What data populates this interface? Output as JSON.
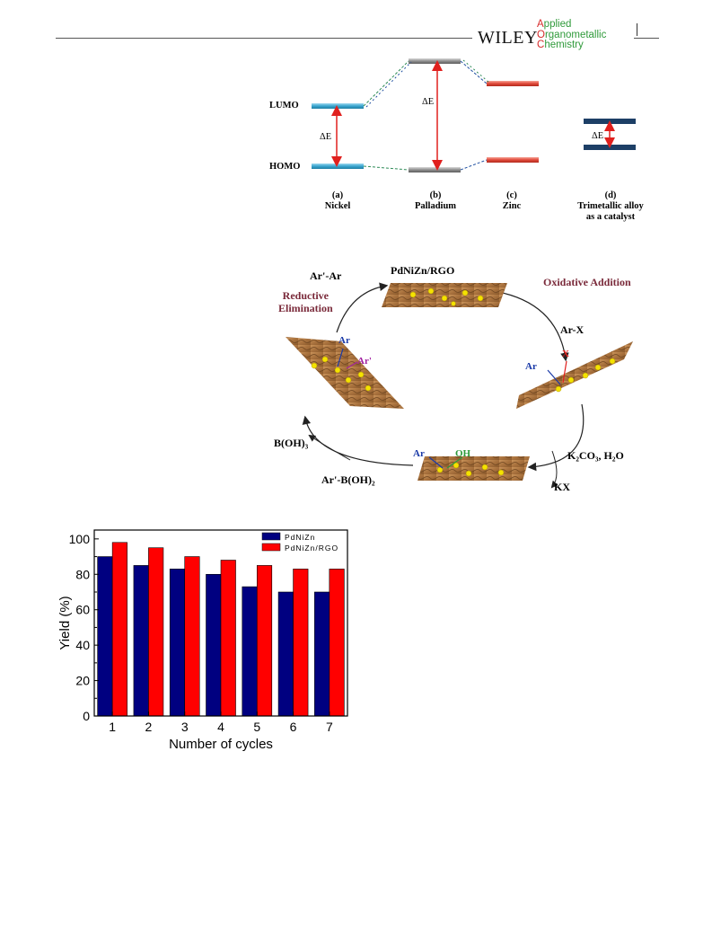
{
  "header": {
    "publisher": "WILEY",
    "journal_line1_cap": "A",
    "journal_line1_rest": "pplied",
    "journal_line2_cap": "O",
    "journal_line2_rest": "rganometallic",
    "journal_line3_cap": "C",
    "journal_line3_rest": "hemistry"
  },
  "energy_diagram": {
    "lumo_label": "LUMO",
    "homo_label": "HOMO",
    "delta_e": "ΔE",
    "panels": [
      {
        "letter": "(a)",
        "name": "Nickel"
      },
      {
        "letter": "(b)",
        "name": "Palladium"
      },
      {
        "letter": "(c)",
        "name": "Zinc"
      },
      {
        "letter": "(d)",
        "name": "Trimetallic alloy",
        "name2": "as a catalyst"
      }
    ],
    "colors": {
      "nickel": "#4fb3d9",
      "palladium": "#9a9a9a",
      "zinc": "#e0493a",
      "alloy": "#1d3f66",
      "arrow": "#e0201e"
    }
  },
  "catalytic_cycle": {
    "catalyst": "PdNiZn/RGO",
    "oxidative_addition": "Oxidative Addition",
    "reductive_elimination_1": "Reductive",
    "reductive_elimination_2": "Elimination",
    "product": "Ar'-Ar",
    "aryl_halide": "Ar-X",
    "base": "K₂CO₃, H₂O",
    "salt": "KX",
    "boronic_acid": "Ar'-B(OH)₂",
    "byproduct": "B(OH)₃",
    "ar": "Ar",
    "ar_prime": "Ar'",
    "x": "X",
    "oh": "OH"
  },
  "chart_data": {
    "type": "bar",
    "categories": [
      "1",
      "2",
      "3",
      "4",
      "5",
      "6",
      "7"
    ],
    "series": [
      {
        "name": "PdNiZn",
        "color": "#000080",
        "values": [
          90,
          85,
          83,
          80,
          73,
          70,
          70
        ]
      },
      {
        "name": "PdNiZn/RGO",
        "color": "#ff0000",
        "values": [
          98,
          95,
          90,
          88,
          85,
          83,
          83
        ]
      }
    ],
    "xlabel": "Number of cycles",
    "ylabel": "Yield (%)",
    "ylim": [
      0,
      105
    ],
    "yticks": [
      0,
      20,
      40,
      60,
      80,
      100
    ],
    "legend": "top-right"
  }
}
